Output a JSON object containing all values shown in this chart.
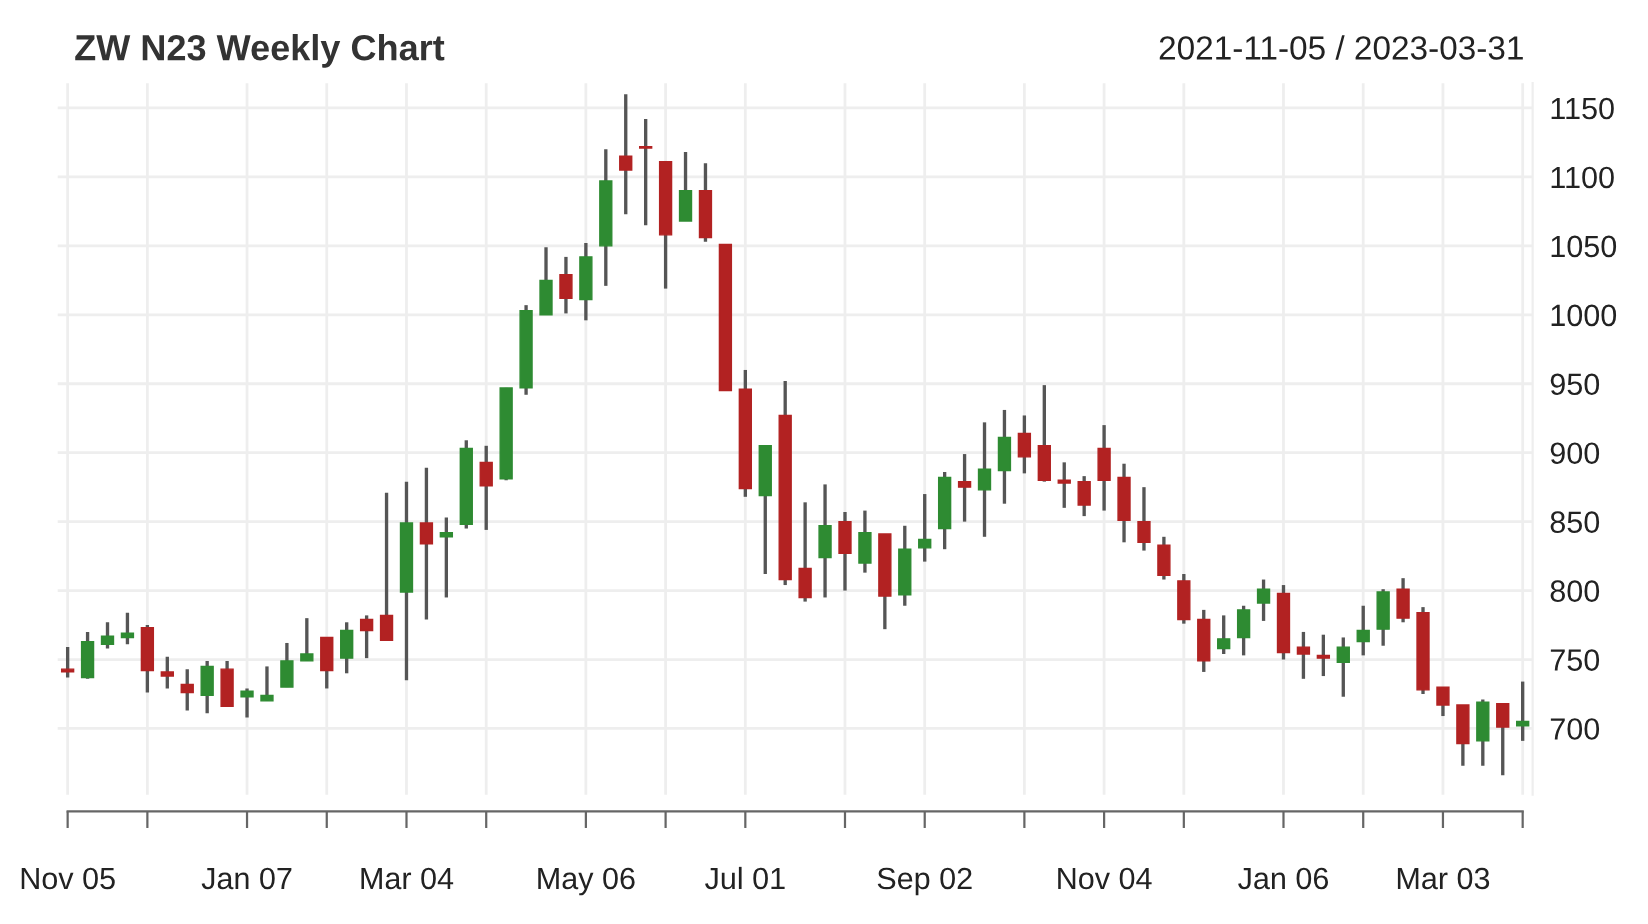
{
  "chart_data": {
    "type": "candlestick",
    "title": "ZW N23 Weekly Chart",
    "subtitle": "2021-11-05 / 2023-03-31",
    "x": [
      "2021-11-05",
      "2021-11-12",
      "2021-11-19",
      "2021-11-26",
      "2021-12-03",
      "2021-12-10",
      "2021-12-17",
      "2021-12-24",
      "2021-12-31",
      "2022-01-07",
      "2022-01-14",
      "2022-01-21",
      "2022-01-28",
      "2022-02-04",
      "2022-02-11",
      "2022-02-18",
      "2022-02-25",
      "2022-03-04",
      "2022-03-11",
      "2022-03-18",
      "2022-03-25",
      "2022-04-01",
      "2022-04-08",
      "2022-04-15",
      "2022-04-22",
      "2022-04-29",
      "2022-05-06",
      "2022-05-13",
      "2022-05-20",
      "2022-05-27",
      "2022-06-03",
      "2022-06-10",
      "2022-06-17",
      "2022-06-24",
      "2022-07-01",
      "2022-07-08",
      "2022-07-15",
      "2022-07-22",
      "2022-07-29",
      "2022-08-05",
      "2022-08-12",
      "2022-08-19",
      "2022-08-26",
      "2022-09-02",
      "2022-09-09",
      "2022-09-16",
      "2022-09-23",
      "2022-09-30",
      "2022-10-07",
      "2022-10-14",
      "2022-10-21",
      "2022-10-28",
      "2022-11-04",
      "2022-11-11",
      "2022-11-18",
      "2022-11-25",
      "2022-12-02",
      "2022-12-09",
      "2022-12-16",
      "2022-12-23",
      "2022-12-30",
      "2023-01-06",
      "2023-01-13",
      "2023-01-20",
      "2023-01-27",
      "2023-02-03",
      "2023-02-10",
      "2023-02-17",
      "2023-02-24",
      "2023-03-03",
      "2023-03-10",
      "2023-03-17",
      "2023-03-24",
      "2023-03-31"
    ],
    "ohlc": [
      [
        743,
        759,
        737,
        741
      ],
      [
        737,
        770,
        736,
        763
      ],
      [
        761,
        777,
        758,
        767
      ],
      [
        766,
        784,
        761,
        769
      ],
      [
        773,
        775,
        726,
        742
      ],
      [
        741,
        752,
        729,
        738
      ],
      [
        732,
        743,
        713,
        726
      ],
      [
        724,
        749,
        711,
        745
      ],
      [
        743,
        749,
        716,
        716
      ],
      [
        723,
        729,
        708,
        727
      ],
      [
        720,
        745,
        720,
        724
      ],
      [
        730,
        762,
        730,
        749
      ],
      [
        749,
        780,
        749,
        754
      ],
      [
        766,
        766,
        729,
        742
      ],
      [
        751,
        777,
        740,
        771
      ],
      [
        779,
        782,
        751,
        771
      ],
      [
        782,
        871,
        764,
        764
      ],
      [
        799,
        879,
        735,
        849
      ],
      [
        849,
        889,
        779,
        834
      ],
      [
        839,
        853,
        795,
        842
      ],
      [
        848,
        909,
        845,
        903
      ],
      [
        893,
        905,
        844,
        876
      ],
      [
        881,
        947,
        880,
        947
      ],
      [
        947,
        1007,
        942,
        1003
      ],
      [
        1000,
        1049,
        1000,
        1025
      ],
      [
        1029,
        1042,
        1001,
        1012
      ],
      [
        1011,
        1052,
        996,
        1042
      ],
      [
        1050,
        1120,
        1021,
        1097
      ],
      [
        1115,
        1160,
        1073,
        1105
      ],
      [
        1122,
        1142,
        1065,
        1121
      ],
      [
        1111,
        1111,
        1019,
        1058
      ],
      [
        1068,
        1118,
        1068,
        1090
      ],
      [
        1090,
        1110,
        1053,
        1056
      ],
      [
        1051,
        1051,
        945,
        945
      ],
      [
        946,
        960,
        868,
        874
      ],
      [
        869,
        905,
        812,
        905
      ],
      [
        927,
        952,
        804,
        808
      ],
      [
        816,
        864,
        792,
        795
      ],
      [
        824,
        877,
        795,
        847
      ],
      [
        850,
        857,
        800,
        827
      ],
      [
        820,
        858,
        813,
        842
      ],
      [
        841,
        841,
        772,
        796
      ],
      [
        797,
        847,
        789,
        830
      ],
      [
        831,
        870,
        821,
        837
      ],
      [
        845,
        886,
        830,
        882
      ],
      [
        879,
        899,
        850,
        875
      ],
      [
        873,
        922,
        839,
        888
      ],
      [
        887,
        931,
        863,
        911
      ],
      [
        914,
        927,
        885,
        897
      ],
      [
        905,
        949,
        879,
        880
      ],
      [
        880,
        893,
        860,
        878
      ],
      [
        879,
        883,
        854,
        862
      ],
      [
        903,
        920,
        858,
        880
      ],
      [
        882,
        892,
        835,
        851
      ],
      [
        850,
        875,
        829,
        835
      ],
      [
        833,
        839,
        808,
        811
      ],
      [
        807,
        812,
        776,
        779
      ],
      [
        779,
        786,
        741,
        749
      ],
      [
        758,
        782,
        754,
        765
      ],
      [
        766,
        789,
        753,
        786
      ],
      [
        791,
        808,
        778,
        801
      ],
      [
        798,
        804,
        750,
        755
      ],
      [
        759,
        770,
        736,
        754
      ],
      [
        753,
        768,
        738,
        751
      ],
      [
        748,
        766,
        723,
        759
      ],
      [
        763,
        789,
        753,
        771
      ],
      [
        772,
        801,
        760,
        799
      ],
      [
        801,
        809,
        777,
        780
      ],
      [
        784,
        788,
        725,
        728
      ],
      [
        730,
        730,
        709,
        717
      ],
      [
        717,
        717,
        673,
        689
      ],
      [
        691,
        721,
        673,
        719
      ],
      [
        718,
        718,
        666,
        701
      ],
      [
        702,
        734,
        691,
        705
      ]
    ],
    "colors": [
      "#b22222",
      "#2e8b32",
      "#2e8b32",
      "#2e8b32",
      "#b22222",
      "#b22222",
      "#b22222",
      "#2e8b32",
      "#b22222",
      "#2e8b32",
      "#2e8b32",
      "#2e8b32",
      "#2e8b32",
      "#b22222",
      "#2e8b32",
      "#b22222",
      "#b22222",
      "#2e8b32",
      "#b22222",
      "#2e8b32",
      "#2e8b32",
      "#b22222",
      "#2e8b32",
      "#2e8b32",
      "#2e8b32",
      "#b22222",
      "#2e8b32",
      "#2e8b32",
      "#b22222",
      "#b22222",
      "#b22222",
      "#2e8b32",
      "#b22222",
      "#b22222",
      "#b22222",
      "#2e8b32",
      "#b22222",
      "#b22222",
      "#2e8b32",
      "#b22222",
      "#2e8b32",
      "#b22222",
      "#2e8b32",
      "#2e8b32",
      "#2e8b32",
      "#b22222",
      "#2e8b32",
      "#2e8b32",
      "#b22222",
      "#b22222",
      "#b22222",
      "#b22222",
      "#b22222",
      "#b22222",
      "#b22222",
      "#b22222",
      "#b22222",
      "#b22222",
      "#2e8b32",
      "#2e8b32",
      "#2e8b32",
      "#b22222",
      "#b22222",
      "#b22222",
      "#2e8b32",
      "#2e8b32",
      "#2e8b32",
      "#b22222",
      "#b22222",
      "#b22222",
      "#b22222",
      "#2e8b32",
      "#b22222",
      "#2e8b32"
    ],
    "ylim": [
      652,
      1168
    ],
    "yticks": [
      700,
      750,
      800,
      850,
      900,
      950,
      1000,
      1050,
      1100,
      1150
    ],
    "xlim": [
      "2021-11-05",
      "2023-03-31"
    ],
    "xticks": [
      {
        "value": "2021-11-05",
        "label": "Nov 05"
      },
      {
        "value": "2021-12-03",
        "label": null
      },
      {
        "value": "2022-01-07",
        "label": "Jan 07"
      },
      {
        "value": "2022-02-04",
        "label": null
      },
      {
        "value": "2022-03-04",
        "label": "Mar 04"
      },
      {
        "value": "2022-04-01",
        "label": null
      },
      {
        "value": "2022-05-06",
        "label": "May 06"
      },
      {
        "value": "2022-06-03",
        "label": null
      },
      {
        "value": "2022-07-01",
        "label": "Jul 01"
      },
      {
        "value": "2022-08-05",
        "label": null
      },
      {
        "value": "2022-09-02",
        "label": "Sep 02"
      },
      {
        "value": "2022-10-07",
        "label": null
      },
      {
        "value": "2022-11-04",
        "label": "Nov 04"
      },
      {
        "value": "2022-12-02",
        "label": null
      },
      {
        "value": "2023-01-06",
        "label": "Jan 06"
      },
      {
        "value": "2023-02-03",
        "label": null
      },
      {
        "value": "2023-03-03",
        "label": "Mar 03"
      },
      {
        "value": "2023-03-31",
        "label": null
      }
    ],
    "grid": true
  }
}
